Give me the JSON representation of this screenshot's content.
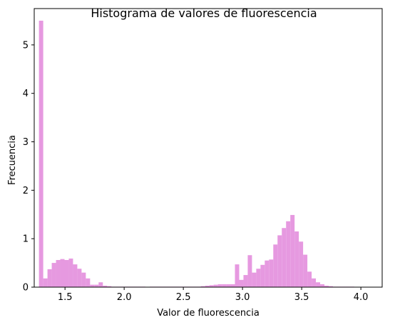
{
  "chart_data": {
    "type": "bar",
    "title": "Histograma de valores de fluorescencia",
    "xlabel": "Valor de fluorescencia",
    "ylabel": "Frecuencia",
    "xlim": [
      1.24,
      4.18
    ],
    "ylim": [
      0,
      5.75
    ],
    "xticks": [
      1.5,
      2.0,
      2.5,
      3.0,
      3.5,
      4.0
    ],
    "xtick_labels": [
      "1.5",
      "2.0",
      "2.5",
      "3.0",
      "3.5",
      "4.0"
    ],
    "yticks": [
      0,
      1,
      2,
      3,
      4,
      5
    ],
    "ytick_labels": [
      "0",
      "1",
      "2",
      "3",
      "4",
      "5"
    ],
    "grid": false,
    "legend": "none",
    "bar_color": "#e699e0",
    "bins": {
      "start": 1.28,
      "width": 0.036,
      "counts": [
        5.5,
        0.18,
        0.37,
        0.5,
        0.56,
        0.58,
        0.56,
        0.59,
        0.47,
        0.38,
        0.3,
        0.18,
        0.05,
        0.05,
        0.1,
        0.03,
        0.02,
        0.01,
        0.01,
        0.01,
        0.01,
        0.01,
        0.01,
        0.01,
        0.01,
        0.0,
        0.01,
        0.01,
        0.01,
        0.01,
        0.01,
        0.01,
        0.01,
        0.01,
        0.01,
        0.01,
        0.01,
        0.01,
        0.02,
        0.03,
        0.04,
        0.05,
        0.06,
        0.06,
        0.06,
        0.06,
        0.47,
        0.15,
        0.25,
        0.66,
        0.3,
        0.38,
        0.46,
        0.55,
        0.57,
        0.88,
        1.07,
        1.22,
        1.36,
        1.49,
        1.15,
        0.94,
        0.67,
        0.32,
        0.18,
        0.1,
        0.06,
        0.03,
        0.02,
        0.01,
        0.01,
        0.01,
        0.01,
        0.01
      ]
    }
  }
}
